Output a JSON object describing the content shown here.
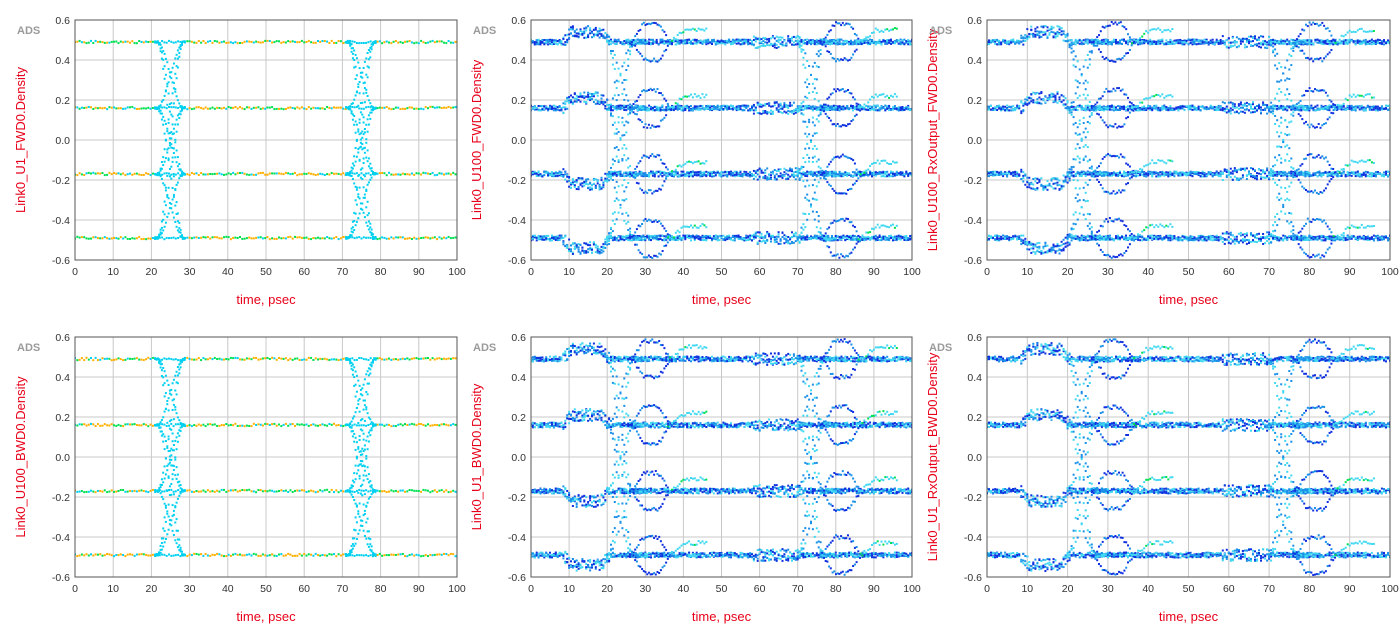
{
  "chart_data": [
    {
      "type": "scatter",
      "watermark": "ADS",
      "ylabel": "Link0_U1_FWD0.Density",
      "xlabel": "time, psec",
      "xlim": [
        0,
        100
      ],
      "ylim": [
        -0.6,
        0.6
      ],
      "xticks": [
        "0",
        "10",
        "20",
        "30",
        "40",
        "50",
        "60",
        "70",
        "80",
        "90",
        "100"
      ],
      "yticks": [
        "-0.6",
        "-0.4",
        "-0.2",
        "0.0",
        "0.2",
        "0.4",
        "0.6"
      ],
      "grid": true,
      "eye_style": "clean",
      "levels": [
        -0.49,
        -0.17,
        0.16,
        0.49
      ],
      "transition_centers": [
        25,
        75
      ]
    },
    {
      "type": "scatter",
      "watermark": "ADS",
      "ylabel": "Link0_U100_FWD0.Density",
      "xlabel": "time, psec",
      "xlim": [
        0,
        100
      ],
      "ylim": [
        -0.6,
        0.6
      ],
      "xticks": [
        "0",
        "10",
        "20",
        "30",
        "40",
        "50",
        "60",
        "70",
        "80",
        "90",
        "100"
      ],
      "yticks": [
        "-0.6",
        "-0.4",
        "-0.2",
        "0.0",
        "0.2",
        "0.4",
        "0.6"
      ],
      "grid": true,
      "eye_style": "echo",
      "levels": [
        -0.49,
        -0.17,
        0.16,
        0.49
      ],
      "transition_centers": [
        25,
        75
      ]
    },
    {
      "type": "scatter",
      "watermark": "ADS",
      "ylabel": "Link0_U100_RxOutput_FWD0.Density",
      "xlabel": "time, psec",
      "xlim": [
        0,
        100
      ],
      "ylim": [
        -0.6,
        0.6
      ],
      "xticks": [
        "0",
        "10",
        "20",
        "30",
        "40",
        "50",
        "60",
        "70",
        "80",
        "90",
        "100"
      ],
      "yticks": [
        "-0.6",
        "-0.4",
        "-0.2",
        "0.0",
        "0.2",
        "0.4",
        "0.6"
      ],
      "grid": true,
      "eye_style": "echo",
      "levels": [
        -0.49,
        -0.17,
        0.16,
        0.49
      ],
      "transition_centers": [
        25,
        75
      ]
    },
    {
      "type": "scatter",
      "watermark": "ADS",
      "ylabel": "Link0_U100_BWD0.Density",
      "xlabel": "time, psec",
      "xlim": [
        0,
        100
      ],
      "ylim": [
        -0.6,
        0.6
      ],
      "xticks": [
        "0",
        "10",
        "20",
        "30",
        "40",
        "50",
        "60",
        "70",
        "80",
        "90",
        "100"
      ],
      "yticks": [
        "-0.6",
        "-0.4",
        "-0.2",
        "0.0",
        "0.2",
        "0.4",
        "0.6"
      ],
      "grid": true,
      "eye_style": "clean",
      "levels": [
        -0.49,
        -0.17,
        0.16,
        0.49
      ],
      "transition_centers": [
        25,
        75
      ]
    },
    {
      "type": "scatter",
      "watermark": "ADS",
      "ylabel": "Link0_U1_BWD0.Density",
      "xlabel": "time, psec",
      "xlim": [
        0,
        100
      ],
      "ylim": [
        -0.6,
        0.6
      ],
      "xticks": [
        "0",
        "10",
        "20",
        "30",
        "40",
        "50",
        "60",
        "70",
        "80",
        "90",
        "100"
      ],
      "yticks": [
        "-0.6",
        "-0.4",
        "-0.2",
        "0.0",
        "0.2",
        "0.4",
        "0.6"
      ],
      "grid": true,
      "eye_style": "echo",
      "levels": [
        -0.49,
        -0.17,
        0.16,
        0.49
      ],
      "transition_centers": [
        25,
        75
      ]
    },
    {
      "type": "scatter",
      "watermark": "ADS",
      "ylabel": "Link0_U1_RxOutput_BWD0.Density",
      "xlabel": "time, psec",
      "xlim": [
        0,
        100
      ],
      "ylim": [
        -0.6,
        0.6
      ],
      "xticks": [
        "0",
        "10",
        "20",
        "30",
        "40",
        "50",
        "60",
        "70",
        "80",
        "90",
        "100"
      ],
      "yticks": [
        "-0.6",
        "-0.4",
        "-0.2",
        "0.0",
        "0.2",
        "0.4",
        "0.6"
      ],
      "grid": true,
      "eye_style": "echo",
      "levels": [
        -0.49,
        -0.17,
        0.16,
        0.49
      ],
      "transition_centers": [
        25,
        75
      ]
    }
  ],
  "colors": {
    "label": "#e8001a",
    "axis_text": "#333333",
    "watermark": "#9a9a9a",
    "grid": "#c8c8c8",
    "density_low": "#00d0f0",
    "density_mid": "#00e050",
    "density_high": "#ffb000",
    "echo_dense": "#1030e0",
    "echo_mid": "#1a90e8",
    "echo_light": "#40d8f0"
  }
}
